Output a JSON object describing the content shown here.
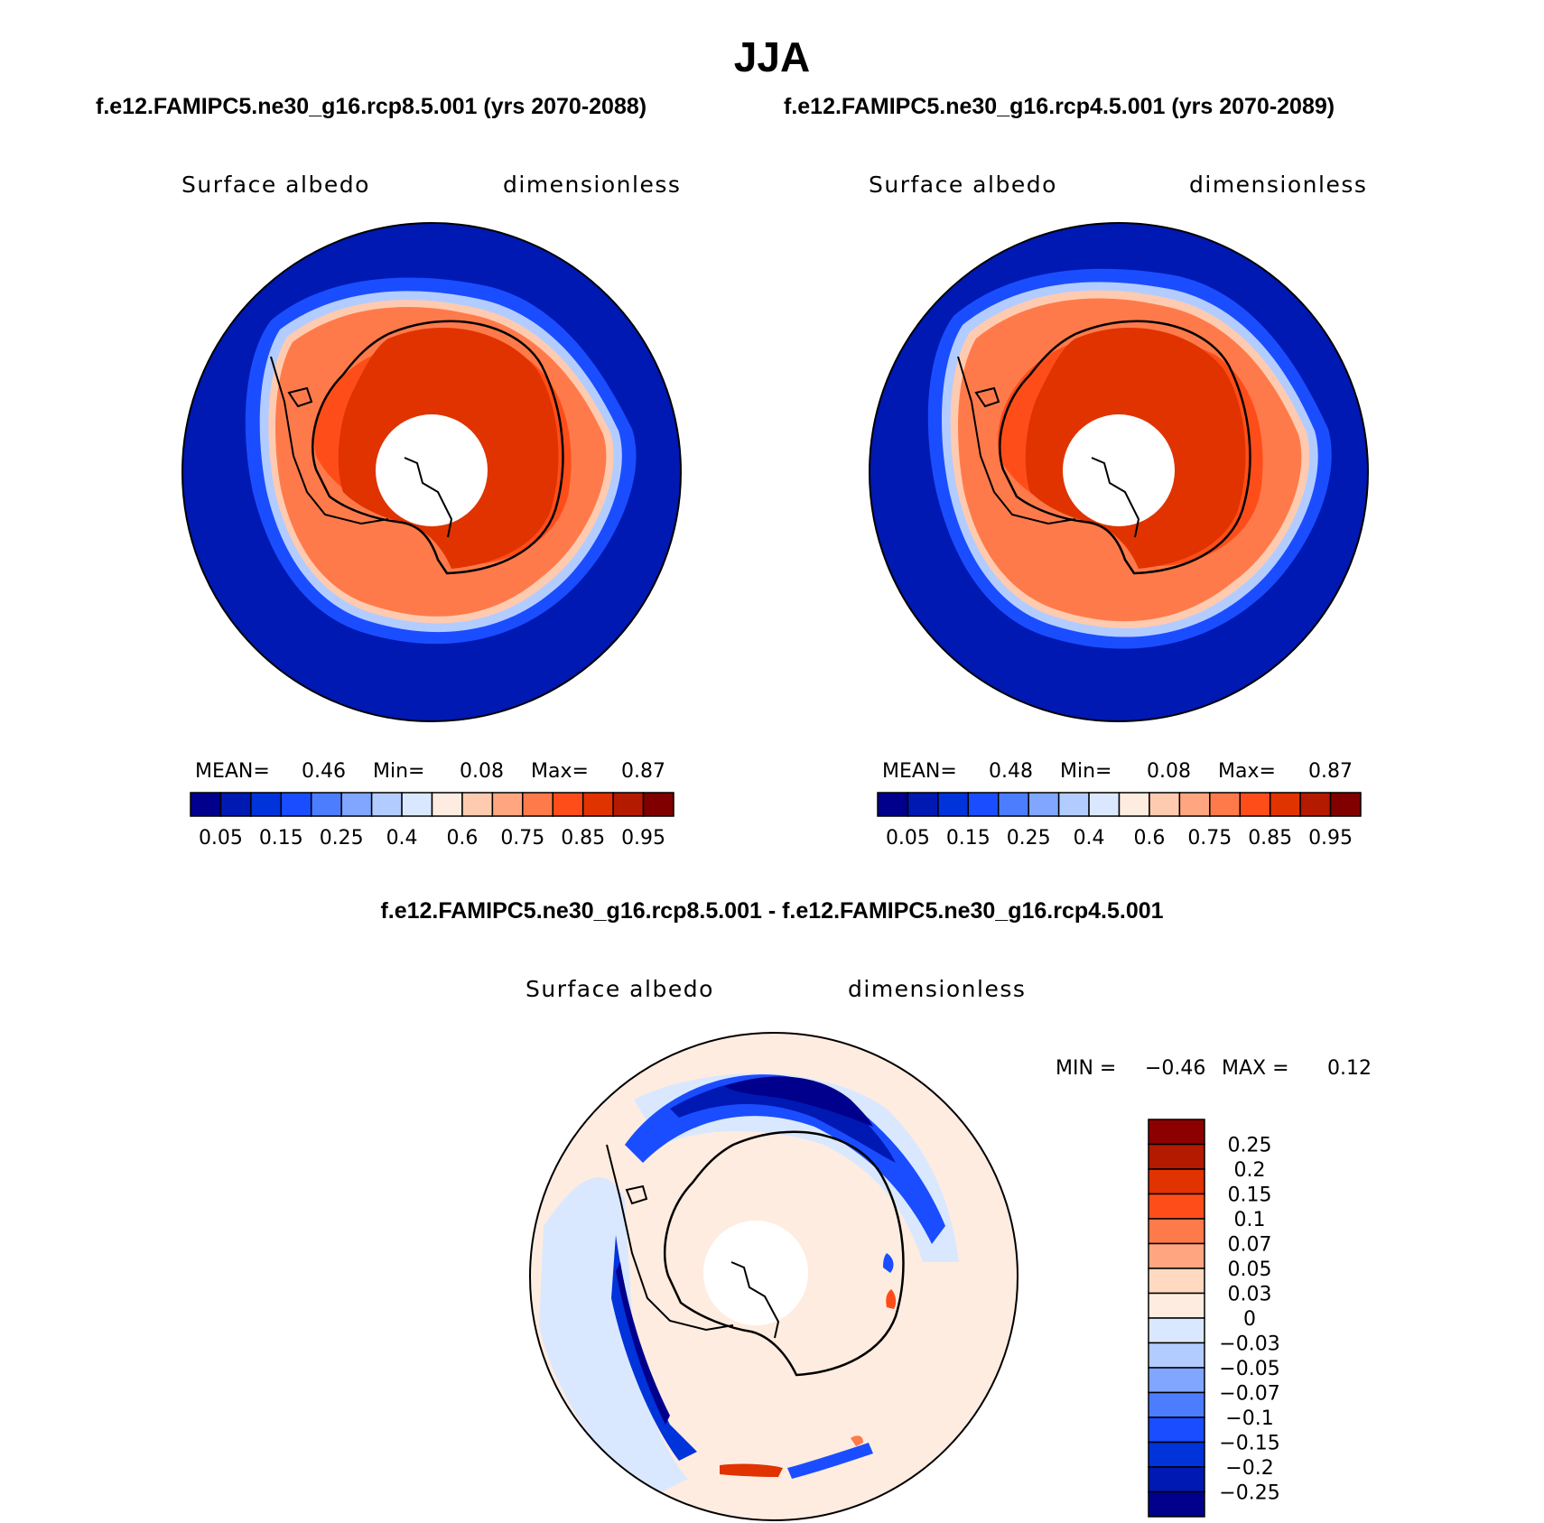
{
  "title": "JJA",
  "panels": [
    {
      "case_label": "f.e12.FAMIPC5.ne30_g16.rcp8.5.001 (yrs 2070-2088)",
      "variable": "Surface albedo",
      "units": "dimensionless",
      "stats": {
        "mean_label": "MEAN=",
        "mean": "0.46",
        "min_label": "Min=",
        "min": "0.08",
        "max_label": "Max=",
        "max": "0.87"
      }
    },
    {
      "case_label": "f.e12.FAMIPC5.ne30_g16.rcp4.5.001 (yrs 2070-2089)",
      "variable": "Surface albedo",
      "units": "dimensionless",
      "stats": {
        "mean_label": "MEAN=",
        "mean": "0.48",
        "min_label": "Min=",
        "min": "0.08",
        "max_label": "Max=",
        "max": "0.87"
      }
    }
  ],
  "abs_colorbar": {
    "colors": [
      "#00008c",
      "#0019b3",
      "#0033d9",
      "#1a4dff",
      "#4d7dff",
      "#80a6ff",
      "#b3ccff",
      "#dae8ff",
      "#ffece0",
      "#ffcbb0",
      "#ffa680",
      "#ff7a4a",
      "#ff4d1a",
      "#e03300",
      "#b31a00",
      "#800000"
    ],
    "labels": [
      "0.05",
      "0.15",
      "0.25",
      "0.4",
      "0.6",
      "0.75",
      "0.85",
      "0.95"
    ]
  },
  "difference": {
    "title": "f.e12.FAMIPC5.ne30_g16.rcp8.5.001 - f.e12.FAMIPC5.ne30_g16.rcp4.5.001",
    "variable": "Surface albedo",
    "units": "dimensionless",
    "min_label": "MIN =",
    "min": "−0.46",
    "max_label": "MAX =",
    "max": "0.12",
    "colorbar": {
      "colors": [
        "#8c0000",
        "#b31a00",
        "#e03300",
        "#ff4d1a",
        "#ff7a4a",
        "#ffa680",
        "#ffd9c0",
        "#ffece0",
        "#dae8ff",
        "#b3ccff",
        "#80a6ff",
        "#4d7dff",
        "#1a4dff",
        "#0033d9",
        "#0019b3",
        "#00008c"
      ],
      "labels": [
        "0.25",
        "0.2",
        "0.15",
        "0.1",
        "0.07",
        "0.05",
        "0.03",
        "0",
        "−0.03",
        "−0.05",
        "−0.07",
        "−0.1",
        "−0.15",
        "−0.2",
        "−0.25"
      ]
    }
  }
}
